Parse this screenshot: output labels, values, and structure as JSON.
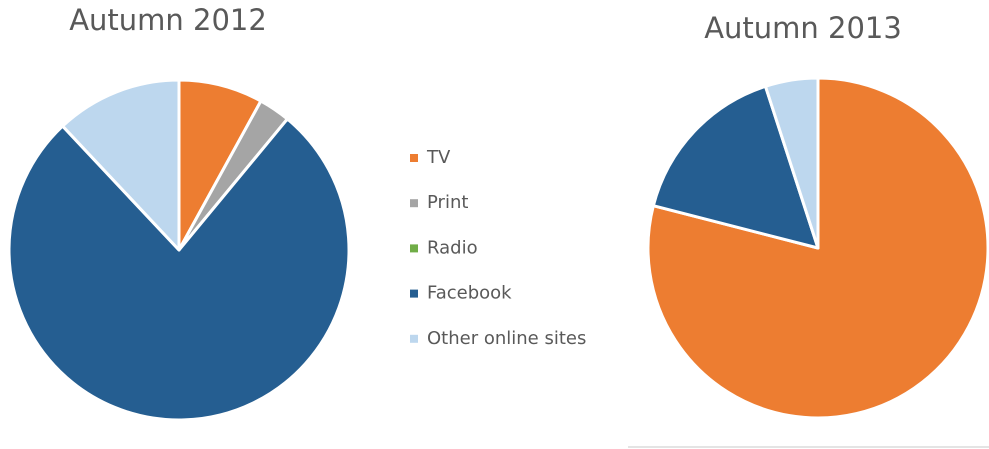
{
  "chart_data": [
    {
      "type": "pie",
      "title": "Autumn 2012",
      "categories": [
        "TV",
        "Print",
        "Radio",
        "Facebook",
        "Other online sites"
      ],
      "values": [
        8,
        3,
        0,
        77,
        12
      ],
      "colors": [
        "#ed7d31",
        "#a5a5a5",
        "#70ad47",
        "#255e91",
        "#bdd7ee"
      ]
    },
    {
      "type": "pie",
      "title": "Autumn 2013",
      "categories": [
        "TV",
        "Print",
        "Radio",
        "Facebook",
        "Other online sites"
      ],
      "values": [
        79,
        0,
        0,
        16,
        5
      ],
      "colors": [
        "#ed7d31",
        "#a5a5a5",
        "#70ad47",
        "#255e91",
        "#bdd7ee"
      ]
    }
  ]
}
